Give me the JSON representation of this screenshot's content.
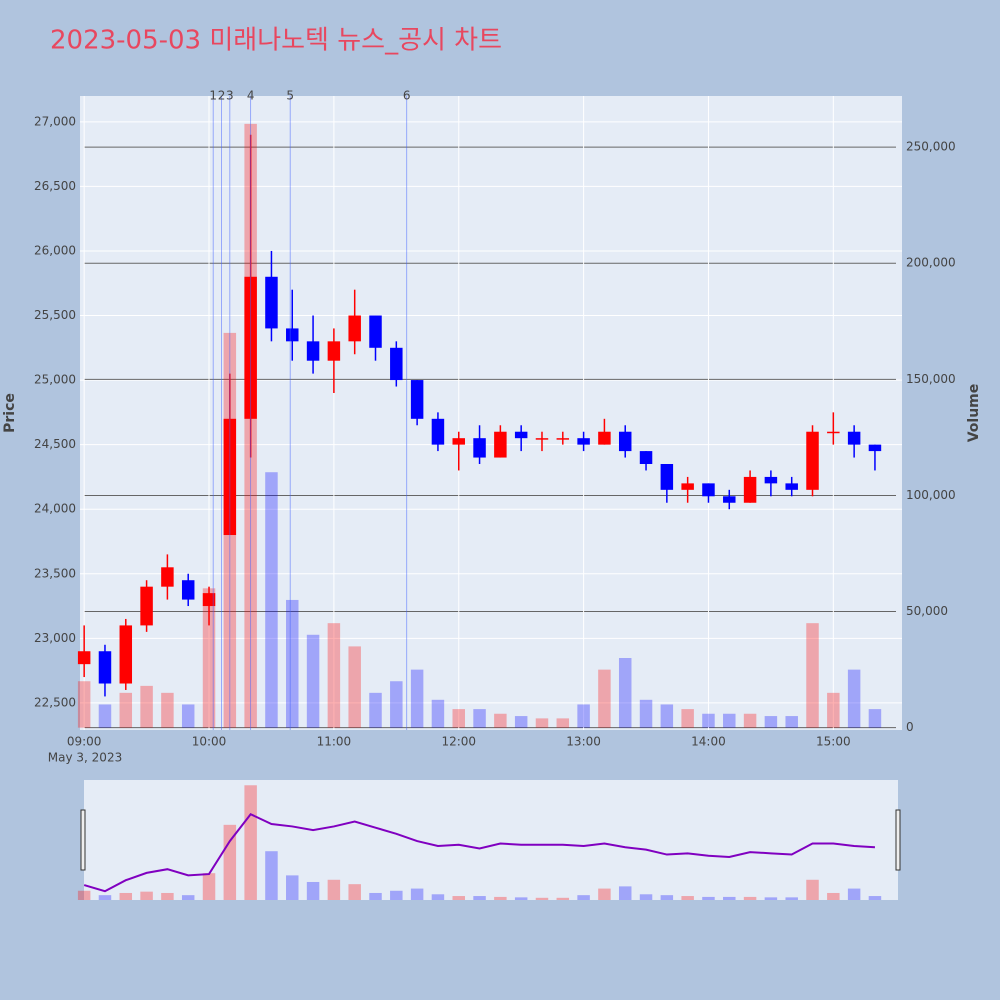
{
  "chart_data": {
    "type": "candlestick",
    "title": "2023-05-03 미래나노텍 뉴스_공시 차트",
    "y_label": "Price",
    "y2_label": "Volume",
    "x_date": "May 3, 2023",
    "x": [
      "09:00",
      "09:10",
      "09:20",
      "09:30",
      "09:40",
      "09:50",
      "10:00",
      "10:10",
      "10:20",
      "10:30",
      "10:40",
      "10:50",
      "11:00",
      "11:10",
      "11:20",
      "11:30",
      "11:40",
      "11:50",
      "12:00",
      "12:10",
      "12:20",
      "12:30",
      "12:40",
      "12:50",
      "13:00",
      "13:10",
      "13:20",
      "13:30",
      "13:40",
      "13:50",
      "14:00",
      "14:10",
      "14:20",
      "14:30",
      "14:40",
      "14:50",
      "15:00",
      "15:10",
      "15:20"
    ],
    "open": [
      22800,
      22900,
      22650,
      23100,
      23400,
      23450,
      23250,
      23800,
      24700,
      25800,
      25400,
      25300,
      25150,
      25300,
      25500,
      25250,
      25000,
      24700,
      24500,
      24550,
      24400,
      24600,
      24550,
      24550,
      24550,
      24500,
      24600,
      24450,
      24350,
      24150,
      24200,
      24100,
      24050,
      24250,
      24200,
      24150,
      24600,
      24600,
      24500
    ],
    "high": [
      23100,
      22950,
      23150,
      23450,
      23650,
      23500,
      23400,
      25050,
      26900,
      26000,
      25700,
      25500,
      25400,
      25700,
      25500,
      25300,
      25000,
      24750,
      24600,
      24650,
      24650,
      24650,
      24600,
      24600,
      24600,
      24700,
      24650,
      24450,
      24350,
      24250,
      24200,
      24150,
      24300,
      24300,
      24250,
      24650,
      24750,
      24650,
      24500
    ],
    "low": [
      22700,
      22550,
      22600,
      23050,
      23300,
      23250,
      23100,
      23800,
      24400,
      25300,
      25150,
      25050,
      24900,
      25200,
      25150,
      24950,
      24650,
      24450,
      24300,
      24350,
      24400,
      24450,
      24450,
      24500,
      24450,
      24500,
      24400,
      24300,
      24050,
      24050,
      24050,
      24000,
      24050,
      24100,
      24100,
      24100,
      24500,
      24400,
      24300
    ],
    "close": [
      22900,
      22650,
      23100,
      23400,
      23550,
      23300,
      23350,
      24700,
      25800,
      25400,
      25300,
      25150,
      25300,
      25500,
      25250,
      25000,
      24700,
      24500,
      24550,
      24400,
      24600,
      24550,
      24550,
      24550,
      24500,
      24600,
      24450,
      24350,
      24150,
      24200,
      24100,
      24050,
      24250,
      24200,
      24150,
      24600,
      24600,
      24500,
      24450
    ],
    "volume": [
      20000,
      10000,
      15000,
      18000,
      15000,
      10000,
      60000,
      170000,
      260000,
      110000,
      55000,
      40000,
      45000,
      35000,
      15000,
      20000,
      25000,
      12000,
      8000,
      8000,
      6000,
      5000,
      4000,
      4000,
      10000,
      25000,
      30000,
      12000,
      10000,
      8000,
      6000,
      6000,
      6000,
      5000,
      5000,
      45000,
      15000,
      25000,
      8000
    ],
    "increasing_color": "#ff0000",
    "decreasing_color": "#0000ff",
    "news": [
      {
        "x": "10:02",
        "label": "1"
      },
      {
        "x": "10:06",
        "label": "2"
      },
      {
        "x": "10:10",
        "label": "3"
      },
      {
        "x": "10:20",
        "label": "4"
      },
      {
        "x": "10:39",
        "label": "5"
      },
      {
        "x": "11:35",
        "label": "6"
      }
    ],
    "xlim": [
      "08:58",
      "15:33"
    ],
    "xticks": [
      "09:00",
      "10:00",
      "11:00",
      "12:00",
      "13:00",
      "14:00",
      "15:00"
    ],
    "ylim": [
      22290,
      27200
    ],
    "yticks": [
      {
        "value": 22500,
        "label": "22,500"
      },
      {
        "value": 23000,
        "label": "23,000"
      },
      {
        "value": 23500,
        "label": "23,500"
      },
      {
        "value": 24000,
        "label": "24,000"
      },
      {
        "value": 24500,
        "label": "24,500"
      },
      {
        "value": 25000,
        "label": "25,000"
      },
      {
        "value": 25500,
        "label": "25,500"
      },
      {
        "value": 26000,
        "label": "26,000"
      },
      {
        "value": 26500,
        "label": "26,500"
      },
      {
        "value": 27000,
        "label": "27,000"
      }
    ],
    "y2lim": [
      -1000,
      272000
    ],
    "y2ticks": [
      0,
      {
        "value": 50000,
        "label": "50,000"
      },
      {
        "value": 100000,
        "label": "100,000"
      },
      {
        "value": 150000,
        "label": "150,000"
      },
      {
        "value": 200000,
        "label": "200,000"
      },
      {
        "value": 250000,
        "label": "250,000"
      }
    ]
  }
}
